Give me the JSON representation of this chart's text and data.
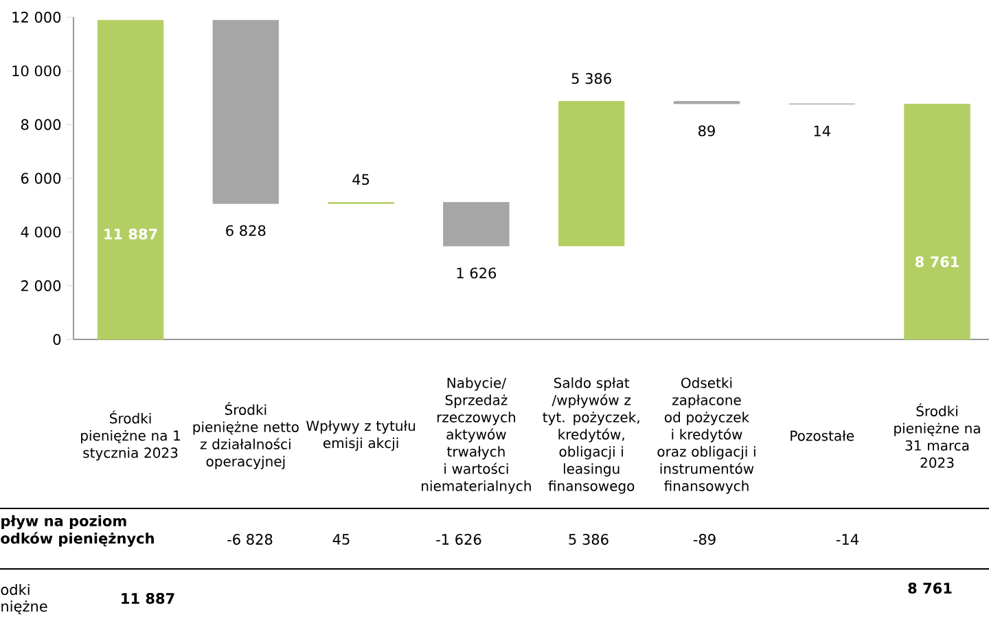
{
  "chart_data": {
    "type": "bar",
    "categories": [
      "Środki pieniężne na 1 stycznia 2023",
      "Środki pieniężne netto z działalności operacyjnej",
      "Wpływy z tytułu emisji akcji",
      "Nabycie/ Sprzedaż rzeczowych aktywów trwałych i wartości niematerialnych",
      "Saldo spłat /wpływów z tyt. pożyczek, kredytów, obligacji i leasingu finansowego",
      "Odsetki zapłacone od pożyczek i kredytów oraz obligacji i instrumentów finansowych",
      "Pozostałe",
      "Środki pieniężne na 31 marca 2023"
    ],
    "values": [
      11887,
      -6828,
      45,
      -1626,
      5386,
      -89,
      -14,
      8761
    ],
    "base": [
      0,
      11887,
      5059,
      5104,
      3478,
      8864,
      8775,
      0
    ],
    "colors": [
      "#b3cf64",
      "#a6a6a6",
      "#b3cf64",
      "#a6a6a6",
      "#b3cf64",
      "#a6a6a6",
      "#a6a6a6",
      "#b3cf64"
    ],
    "value_labels": [
      "11 887",
      "6 828",
      "45",
      "1 626",
      "5 386",
      "89",
      "14",
      "8 761"
    ],
    "ylim": [
      0,
      12000
    ],
    "yticks": [
      {
        "value": 0,
        "label": "0"
      },
      {
        "value": 2000,
        "label": "2 000"
      },
      {
        "value": 4000,
        "label": "4 000"
      },
      {
        "value": 6000,
        "label": "6 000"
      },
      {
        "value": 8000,
        "label": "8 000"
      },
      {
        "value": 10000,
        "label": "10 000"
      },
      {
        "value": 12000,
        "label": "12 000"
      }
    ],
    "annotations": [
      "pływ na poziom",
      "odków pieniężnych",
      "-6 828",
      "45",
      "-1 626",
      "5 386",
      "-89",
      "-14",
      "odki",
      "niężne",
      "11 887",
      "8 761"
    ]
  }
}
